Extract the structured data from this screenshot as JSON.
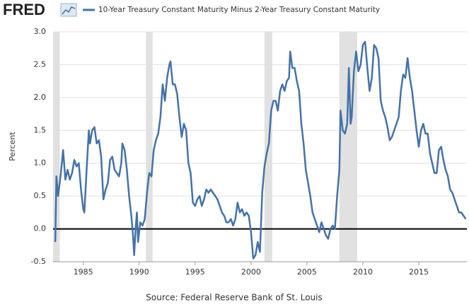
{
  "chart_data": {
    "type": "line",
    "logo": "FRED",
    "source": "Source: Federal Reserve Bank of St. Louis",
    "ylabel": "Percent",
    "xlim": [
      1982.3,
      2019.3
    ],
    "ylim": [
      -0.5,
      3
    ],
    "xticks": [
      1985,
      1990,
      1995,
      2000,
      2005,
      2010,
      2015
    ],
    "yticks": [
      -0.5,
      {
        "value": 0,
        "label": "0.0"
      },
      0.5,
      {
        "value": 1,
        "label": "1.0"
      },
      1.5,
      {
        "value": 2,
        "label": "2.0"
      },
      2.5,
      {
        "value": 3,
        "label": "3.0"
      }
    ],
    "grid": true,
    "recessions": [
      [
        1982.3,
        1982.9
      ],
      [
        1990.6,
        1991.2
      ],
      [
        2001.2,
        2001.9
      ],
      [
        2007.9,
        2009.5
      ]
    ],
    "x": [
      1982.5,
      1982.6,
      1982.75,
      1983.0,
      1983.2,
      1983.4,
      1983.6,
      1983.8,
      1984.0,
      1984.2,
      1984.4,
      1984.6,
      1984.8,
      1985.0,
      1985.1,
      1985.3,
      1985.5,
      1985.6,
      1985.8,
      1986.0,
      1986.2,
      1986.4,
      1986.6,
      1986.8,
      1987.0,
      1987.2,
      1987.4,
      1987.6,
      1987.8,
      1988.0,
      1988.2,
      1988.4,
      1988.5,
      1988.7,
      1988.9,
      1989.1,
      1989.3,
      1989.45,
      1989.55,
      1989.7,
      1989.8,
      1989.9,
      1990.1,
      1990.3,
      1990.5,
      1990.7,
      1990.9,
      1991.1,
      1991.3,
      1991.5,
      1991.7,
      1991.9,
      1992.1,
      1992.3,
      1992.5,
      1992.7,
      1992.8,
      1993.0,
      1993.2,
      1993.4,
      1993.6,
      1993.8,
      1994.0,
      1994.2,
      1994.4,
      1994.6,
      1994.8,
      1995.0,
      1995.2,
      1995.4,
      1995.6,
      1995.8,
      1996.0,
      1996.2,
      1996.4,
      1996.6,
      1996.8,
      1997.0,
      1997.2,
      1997.4,
      1997.6,
      1997.8,
      1998.0,
      1998.2,
      1998.4,
      1998.6,
      1998.8,
      1999.0,
      1999.2,
      1999.4,
      1999.6,
      1999.8,
      2000.0,
      2000.2,
      2000.4,
      2000.6,
      2000.8,
      2001.0,
      2001.2,
      2001.4,
      2001.6,
      2001.8,
      2002.0,
      2002.2,
      2002.4,
      2002.6,
      2002.8,
      2003.0,
      2003.2,
      2003.4,
      2003.5,
      2003.7,
      2003.9,
      2004.1,
      2004.3,
      2004.5,
      2004.7,
      2004.9,
      2005.1,
      2005.3,
      2005.5,
      2005.7,
      2005.9,
      2006.1,
      2006.3,
      2006.5,
      2006.7,
      2006.9,
      2007.1,
      2007.3,
      2007.5,
      2007.7,
      2007.9,
      2008.0,
      2008.2,
      2008.4,
      2008.6,
      2008.75,
      2008.9,
      2009.0,
      2009.2,
      2009.4,
      2009.6,
      2009.8,
      2010.0,
      2010.2,
      2010.4,
      2010.6,
      2010.8,
      2011.0,
      2011.2,
      2011.4,
      2011.6,
      2011.8,
      2012.0,
      2012.2,
      2012.4,
      2012.6,
      2012.8,
      2013.0,
      2013.2,
      2013.4,
      2013.6,
      2013.8,
      2014.0,
      2014.2,
      2014.4,
      2014.6,
      2014.8,
      2015.0,
      2015.2,
      2015.4,
      2015.6,
      2015.8,
      2016.0,
      2016.2,
      2016.4,
      2016.6,
      2016.8,
      2017.0,
      2017.2,
      2017.4,
      2017.6,
      2017.8,
      2018.0,
      2018.2,
      2018.4,
      2018.6,
      2018.8,
      2019.0,
      2019.2
    ],
    "series": [
      {
        "name": "10-Year Treasury Constant Maturity Minus 2-Year Treasury Constant Maturity",
        "color": "#4572a7",
        "values": [
          -0.2,
          0.8,
          0.5,
          0.85,
          1.2,
          0.75,
          0.9,
          0.75,
          0.85,
          1.05,
          0.95,
          1.0,
          0.6,
          0.3,
          0.25,
          0.9,
          1.5,
          1.3,
          1.5,
          1.55,
          1.3,
          1.35,
          1.1,
          0.45,
          0.6,
          0.7,
          1.05,
          1.1,
          0.9,
          0.85,
          0.8,
          1.0,
          1.3,
          1.2,
          0.9,
          0.5,
          0.2,
          -0.1,
          -0.4,
          0.05,
          0.25,
          -0.2,
          0.1,
          0.05,
          0.15,
          0.55,
          0.85,
          0.8,
          1.2,
          1.35,
          1.45,
          1.7,
          2.2,
          1.95,
          2.3,
          2.5,
          2.55,
          2.2,
          2.2,
          2.05,
          1.7,
          1.4,
          1.6,
          1.5,
          1.0,
          0.85,
          0.4,
          0.35,
          0.45,
          0.5,
          0.35,
          0.45,
          0.6,
          0.55,
          0.6,
          0.55,
          0.5,
          0.45,
          0.35,
          0.25,
          0.2,
          0.1,
          0.1,
          0.15,
          0.05,
          0.15,
          0.4,
          0.25,
          0.3,
          0.2,
          0.25,
          0.2,
          -0.05,
          -0.45,
          -0.4,
          -0.2,
          -0.35,
          0.55,
          0.95,
          1.15,
          1.3,
          1.8,
          1.95,
          1.95,
          1.8,
          2.1,
          2.2,
          2.1,
          2.25,
          2.3,
          2.7,
          2.45,
          2.45,
          2.25,
          2.1,
          1.6,
          1.3,
          0.9,
          0.7,
          0.5,
          0.25,
          0.15,
          0.05,
          -0.05,
          0.1,
          0.0,
          -0.1,
          -0.15,
          0.0,
          0.05,
          0.0,
          0.5,
          0.9,
          1.8,
          1.5,
          1.45,
          1.6,
          2.45,
          1.6,
          1.7,
          2.4,
          2.7,
          2.4,
          2.5,
          2.8,
          2.85,
          2.45,
          2.1,
          2.3,
          2.8,
          2.75,
          2.6,
          1.95,
          1.8,
          1.7,
          1.55,
          1.35,
          1.4,
          1.5,
          1.6,
          1.7,
          2.1,
          2.35,
          2.3,
          2.6,
          2.3,
          2.1,
          1.8,
          1.5,
          1.25,
          1.5,
          1.6,
          1.45,
          1.45,
          1.15,
          1.0,
          0.85,
          0.85,
          1.2,
          1.25,
          1.05,
          0.9,
          0.8,
          0.6,
          0.55,
          0.45,
          0.35,
          0.25,
          0.25,
          0.2,
          0.15
        ]
      }
    ]
  }
}
